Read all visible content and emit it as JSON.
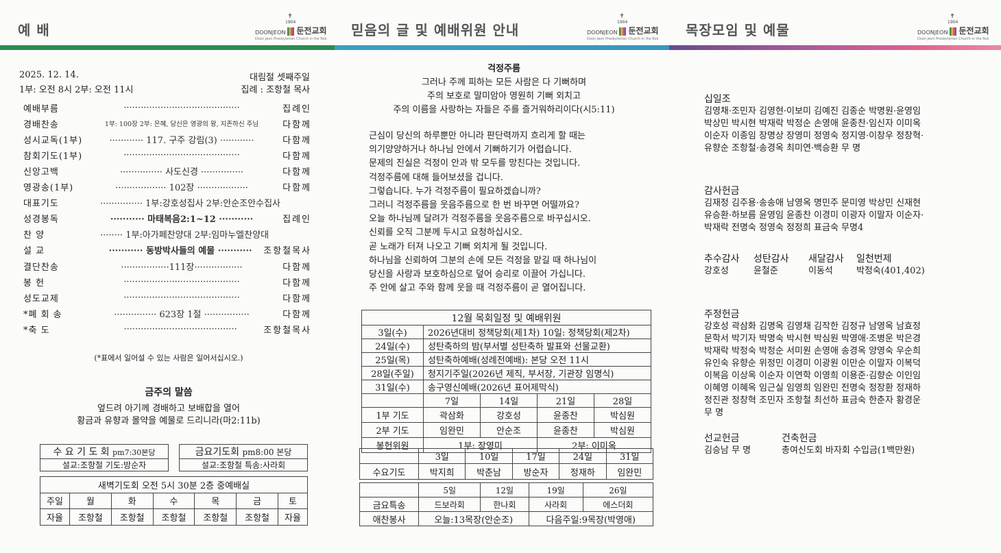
{
  "colors": {
    "green": "#2f8a50",
    "teal": "#3a9fc2",
    "purple": "#7b4f96",
    "pink": "#e0628f"
  },
  "logo": {
    "en": "DOONJEON",
    "ko": "둔전교회",
    "year": "1904",
    "sub": "Doon Jeon Presbyterian Church in the Rok"
  },
  "sections": [
    "예   배",
    "믿음의 글 및 예배위원 안내",
    "목장모임 및 예물"
  ],
  "worship": {
    "date": "2025. 12. 14.",
    "season": "대림절 셋째주일",
    "times": "1부: 오전 8시   2부: 오전 11시",
    "leader": "집례 : 조항철 목사",
    "order": [
      {
        "label": "예배부름",
        "mid": "·········································",
        "right": "집례인"
      },
      {
        "label": "경배찬송",
        "mid": "1부: 100장  2부: 은혜, 당신은 영광의 왕, 지존하신 주님",
        "right": "다함께"
      },
      {
        "label": "성시교독(1부)",
        "mid": "············ 117. 구주 강림(3) ············",
        "right": "다함께"
      },
      {
        "label": "참회기도(1부)",
        "mid": "·········································",
        "right": "다함께"
      },
      {
        "label": "신앙고백",
        "mid": "··············· 사도신경 ···············",
        "right": "다함께"
      },
      {
        "label": "영광송(1부)",
        "mid": "·················· 102장 ··················",
        "right": "다함께"
      },
      {
        "label": "대표기도",
        "mid": "··············· 1부:강호성집사 2부:안순조안수집사",
        "right": ""
      },
      {
        "label": "성경봉독",
        "mid": "··········· 마태복음2:1~12 ···········",
        "right": "집례인"
      },
      {
        "label": "찬    양",
        "mid": "········ 1부:아가페찬양대 2부:임마누엘찬양대",
        "right": ""
      },
      {
        "label": "설    교",
        "mid": "··········· 동방박사들의 예물 ···········",
        "right": "조항철목사"
      },
      {
        "label": "결단찬송",
        "mid": "·················111장·················",
        "right": "다함께"
      },
      {
        "label": "봉    헌",
        "mid": "·········································",
        "right": "다함께"
      },
      {
        "label": "성도교제",
        "mid": "·········································",
        "right": "다함께"
      },
      {
        "label": "*폐 회 송",
        "mid": "··············· 623장 1절 ················",
        "right": "다함께"
      },
      {
        "label": "*축    도",
        "mid": "········································",
        "right": "조항철목사"
      }
    ],
    "note": "(*표에서 일어설 수 있는 사람은 일어서십시오.)",
    "word_title": "금주의 말씀",
    "word_lines": [
      "엎드려 아기께 경배하고 보배합을 열어",
      "황금과 유향과 몰약을 예물로 드리니라(마2:11b)"
    ],
    "wed": {
      "title": "수 요 기 도 회",
      "time": "pm7:30본당",
      "detail": "설교:조항철     기도:방순자"
    },
    "fri": {
      "title": "금요기도회",
      "time": "pm8:00 본당",
      "detail": "설교:조항철   특송:사라회"
    },
    "dawn": {
      "title": "새벽기도회 오전 5시 30분 2층 중예배실",
      "days": [
        "주일",
        "월",
        "화",
        "수",
        "목",
        "금",
        "토"
      ],
      "leaders": [
        "자율",
        "조항철",
        "조항철",
        "조항철",
        "조항철",
        "조항철",
        "자율"
      ]
    }
  },
  "faith": {
    "title": "걱정주름",
    "verse": [
      "그러나 주께 피하는 모든 사람은 다 기뻐하며",
      "주의 보호로 말미암아 영원히 기뻐 외치고",
      "주의 이름을 사랑하는 자들은 주를 즐거워하리이다(시5:11)"
    ],
    "body": [
      "근심이 당신의 하루뿐만 아니라 판단력까지 흐리게 할 때는",
      "의기양양하거나 하나님 안에서 기뻐하기가 어렵습니다.",
      "문제의 진실은 걱정이 안과 밖 모두를 망친다는 것입니다.",
      "걱정주름에 대해 들어보셨을 겁니다.",
      "그렇습니다. 누가 걱정주름이 필요하겠습니까?",
      "그러니 걱정주름을 웃음주름으로 한 번 바꾸면 어떨까요?",
      "오늘 하나님께 달려가 걱정주름을 웃음주름으로 바꾸십시오.",
      "신뢰를 오직 그분께 두시고 요청하십시오.",
      "곧 노래가 터져 나오고 기뻐 외치게 될 것입니다.",
      "하나님을 신뢰하여 그분의 손에 모든 걱정을 맡길 때 하나님이",
      "당신을 사랑과 보호하심으로 덮어 승리로 이끌어 가십니다.",
      "주 안에 살고 주와 함께 웃을 때 걱정주름이 곧 열어집니다."
    ],
    "schedule": {
      "title": "12월 목회일정 및 예배위원",
      "events": [
        [
          "3일(수)",
          "2026년대비 정책당회(제1차) 10일: 정책당회(제2차)"
        ],
        [
          "24일(수)",
          "성탄축하의 밤(부서별 성탄축하 발표와 선물교환)"
        ],
        [
          "25일(목)",
          "성탄축하예배(성례전예배): 본당 오전 11시"
        ],
        [
          "28일(주일)",
          "청지기주일(2026년 제직, 부서장, 기관장 임명식)"
        ],
        [
          "31일(수)",
          "송구영신예배(2026년 표어제막식)"
        ]
      ],
      "sundays": [
        "7일",
        "14일",
        "21일",
        "28일"
      ],
      "prayer1": {
        "label": "1부 기도",
        "names": [
          "곽삼화",
          "강호성",
          "윤종찬",
          "박심원"
        ]
      },
      "prayer2": {
        "label": "2부 기도",
        "names": [
          "임완민",
          "안순조",
          "윤종찬",
          "박심원"
        ]
      },
      "offering": {
        "label": "봉헌위원",
        "first": "1부: 장영미",
        "second": "2부: 이미옥"
      }
    },
    "wed": {
      "dates": [
        "3일",
        "10일",
        "17일",
        "24일",
        "31일"
      ],
      "label": "수요기도",
      "names": [
        "박지희",
        "박춘남",
        "방순자",
        "정재하",
        "임완민"
      ]
    },
    "fri": {
      "dates": [
        "5일",
        "12일",
        "19일",
        "26일"
      ],
      "label": "금요특송",
      "names": [
        "드보라회",
        "한나회",
        "사라회",
        "에스더회"
      ]
    },
    "praise": {
      "label": "애찬봉사",
      "today": "오늘:13목장(안순조)",
      "next": "다음주일:9목장(박영애)"
    }
  },
  "offerings": {
    "tithe": {
      "title": "십일조",
      "lines": [
        "김영채·조민자 김영현·이보미 김예진 김종순 박명원·윤영임",
        "박상민 박시현 박재락 박정순 손영애 윤종찬·임신자 이미옥",
        "이순자 이종임 장명상 장영미 정영숙 정지영·이창우 정창혁·",
        "유향순 조항철·송경옥 최미연·백승환 무  명"
      ]
    },
    "thanks": {
      "title": "감사헌금",
      "lines": [
        "김재정 김주용·송송애 남영옥 명민주 문미영 박상민 신재현",
        "유승환·하보름 윤영임 윤종찬 이경미 이광자 이말자 이순자·",
        "박재락 전명숙 정영숙 정정희 표금숙 무명4"
      ]
    },
    "special": [
      {
        "title": "추수감사",
        "name": "강호성"
      },
      {
        "title": "성탄감사",
        "name": "윤철준"
      },
      {
        "title": "새달감사",
        "name": "이동석"
      },
      {
        "title": "일천번제",
        "name": "박정숙(401,402)"
      }
    ],
    "weekly": {
      "title": "주정헌금",
      "lines": [
        "강호성 곽삼화 김명옥 김영채 김작한 김정규 남영옥 남효정",
        "문학서 박기자 박명숙 박시현 박심원 박영애·조병운 박은경",
        "박재락 박정숙 박정순 서미원 손영애 송경옥 양영숙 우순희",
        "유인숙 유향순 위정민 이경미 이광원 이만순 이말자 이복덕",
        "이복음 이상옥 이순자 이연학 이영희 이용준·김향순 이인임",
        "이혜영 이혜옥 임근실 임영희 임완민 전명숙 정장환 정재하",
        "정진관 정창혁 조민자 조항철 최선하 표금숙 한춘자 황경운",
        "무  명"
      ]
    },
    "mission": {
      "title": "선교헌금",
      "name": "김승남 무  명"
    },
    "building": {
      "title": "건축헌금",
      "name": "총여신도회 바자회 수입금(1백만원)"
    }
  }
}
